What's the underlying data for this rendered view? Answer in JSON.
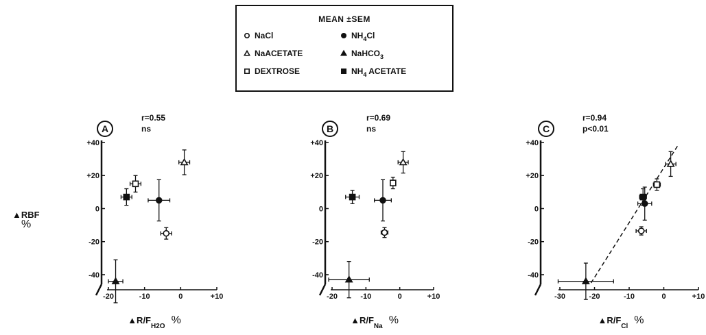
{
  "legend": {
    "title": "MEAN ±SEM",
    "items": [
      {
        "label_main": "NaCl",
        "label_sub": "",
        "label_tail": "",
        "marker": "circle",
        "fill": "open"
      },
      {
        "label_main": "NH",
        "label_sub": "4",
        "label_tail": "Cl",
        "marker": "circle",
        "fill": "filled"
      },
      {
        "label_main": "NaACETATE",
        "label_sub": "",
        "label_tail": "",
        "marker": "triangle",
        "fill": "open"
      },
      {
        "label_main": "NaHCO",
        "label_sub": "3",
        "label_tail": "",
        "marker": "triangle",
        "fill": "filled"
      },
      {
        "label_main": "DEXTROSE",
        "label_sub": "",
        "label_tail": "",
        "marker": "square",
        "fill": "open"
      },
      {
        "label_main": "NH",
        "label_sub": "4",
        "label_tail": " ACETATE",
        "marker": "square",
        "fill": "filled"
      }
    ]
  },
  "y_axis_label": {
    "main": "▲RBF",
    "unit": "%"
  },
  "chart_data": [
    {
      "type": "scatter",
      "panel": "A",
      "r_text": "r=0.55",
      "sig_text": "ns",
      "xlabel": {
        "main": "▲R/F",
        "sub": "H2O",
        "unit": "%"
      },
      "xlim": [
        -20,
        10
      ],
      "ylim": [
        -45,
        40
      ],
      "x_ticks": [
        "-20",
        "-10",
        "0",
        "+10"
      ],
      "x_tick_values": [
        -20,
        -10,
        0,
        10
      ],
      "y_ticks": [
        "+40",
        "+20",
        "0",
        "-20",
        "-40"
      ],
      "y_tick_values": [
        40,
        20,
        0,
        -20,
        -40
      ],
      "trendline": null,
      "points": [
        {
          "series": "NaCl",
          "marker": "circle",
          "fill": "open",
          "x": -4,
          "y": -15,
          "xerr": 1.5,
          "yerr": 3.5
        },
        {
          "series": "NH4Cl",
          "marker": "circle",
          "fill": "filled",
          "x": -6,
          "y": 5,
          "xerr": 3,
          "yerr": 12.5
        },
        {
          "series": "NaACETATE",
          "marker": "triangle",
          "fill": "open",
          "x": 1,
          "y": 28,
          "xerr": 1.5,
          "yerr": 7.5
        },
        {
          "series": "NaHCO3",
          "marker": "triangle",
          "fill": "filled",
          "x": -18,
          "y": -44,
          "xerr": 2,
          "yerr": 13
        },
        {
          "series": "DEXTROSE",
          "marker": "square",
          "fill": "open",
          "x": -12.5,
          "y": 15,
          "xerr": 1.5,
          "yerr": 5
        },
        {
          "series": "NH4ACETATE",
          "marker": "square",
          "fill": "filled",
          "x": -15,
          "y": 7,
          "xerr": 1.5,
          "yerr": 5
        }
      ]
    },
    {
      "type": "scatter",
      "panel": "B",
      "r_text": "r=0.69",
      "sig_text": "ns",
      "xlabel": {
        "main": "▲R/F",
        "sub": "Na",
        "unit": "%"
      },
      "xlim": [
        -20,
        10
      ],
      "ylim": [
        -45,
        40
      ],
      "x_ticks": [
        "-20",
        "-10",
        "0",
        "+10"
      ],
      "x_tick_values": [
        -20,
        -10,
        0,
        10
      ],
      "y_ticks": [
        "+40",
        "+20",
        "0",
        "-20",
        "-40"
      ],
      "y_tick_values": [
        40,
        20,
        0,
        -20,
        -40
      ],
      "trendline": null,
      "points": [
        {
          "series": "NaCl",
          "marker": "circle",
          "fill": "open",
          "x": -4.5,
          "y": -14.5,
          "xerr": 1,
          "yerr": 3
        },
        {
          "series": "NH4Cl",
          "marker": "circle",
          "fill": "filled",
          "x": -5,
          "y": 5,
          "xerr": 2.5,
          "yerr": 12.5
        },
        {
          "series": "NaACETATE",
          "marker": "triangle",
          "fill": "open",
          "x": 1,
          "y": 28,
          "xerr": 1.5,
          "yerr": 6.5
        },
        {
          "series": "NaHCO3",
          "marker": "triangle",
          "fill": "filled",
          "x": -15,
          "y": -43,
          "xerr": 6,
          "yerr": 11
        },
        {
          "series": "DEXTROSE",
          "marker": "square",
          "fill": "open",
          "x": -2,
          "y": 15.5,
          "xerr": 0.5,
          "yerr": 3.5
        },
        {
          "series": "NH4ACETATE",
          "marker": "square",
          "fill": "filled",
          "x": -14,
          "y": 7,
          "xerr": 2,
          "yerr": 4
        }
      ]
    },
    {
      "type": "scatter",
      "panel": "C",
      "r_text": "r=0.94",
      "sig_text": "p<0.01",
      "xlabel": {
        "main": "▲R/F",
        "sub": "Cl",
        "unit": "%"
      },
      "xlim": [
        -30,
        10
      ],
      "ylim": [
        -45,
        40
      ],
      "x_ticks": [
        "-30",
        "-20",
        "-10",
        "0",
        "+10"
      ],
      "x_tick_values": [
        -30,
        -20,
        -10,
        0,
        10
      ],
      "y_ticks": [
        "+40",
        "+20",
        "0",
        "-20",
        "-40"
      ],
      "y_tick_values": [
        40,
        20,
        0,
        -20,
        -40
      ],
      "trendline": {
        "style": "dashed",
        "from": [
          -21,
          -45
        ],
        "to": [
          4,
          38
        ]
      },
      "points": [
        {
          "series": "NaCl",
          "marker": "circle",
          "fill": "open",
          "x": -6.5,
          "y": -13.5,
          "xerr": 1.5,
          "yerr": 2.5
        },
        {
          "series": "NH4Cl",
          "marker": "circle",
          "fill": "filled",
          "x": -5.5,
          "y": 3,
          "xerr": 2,
          "yerr": 10
        },
        {
          "series": "NaACETATE",
          "marker": "triangle",
          "fill": "open",
          "x": 2,
          "y": 27,
          "xerr": 1.5,
          "yerr": 7.5
        },
        {
          "series": "NaHCO3",
          "marker": "triangle",
          "fill": "filled",
          "x": -22.5,
          "y": -44,
          "xerr": 8,
          "yerr": 11
        },
        {
          "series": "DEXTROSE",
          "marker": "square",
          "fill": "open",
          "x": -2,
          "y": 14.5,
          "xerr": 1,
          "yerr": 3.5
        },
        {
          "series": "NH4ACETATE",
          "marker": "square",
          "fill": "filled",
          "x": -6,
          "y": 7,
          "xerr": 1,
          "yerr": 5
        }
      ]
    }
  ]
}
